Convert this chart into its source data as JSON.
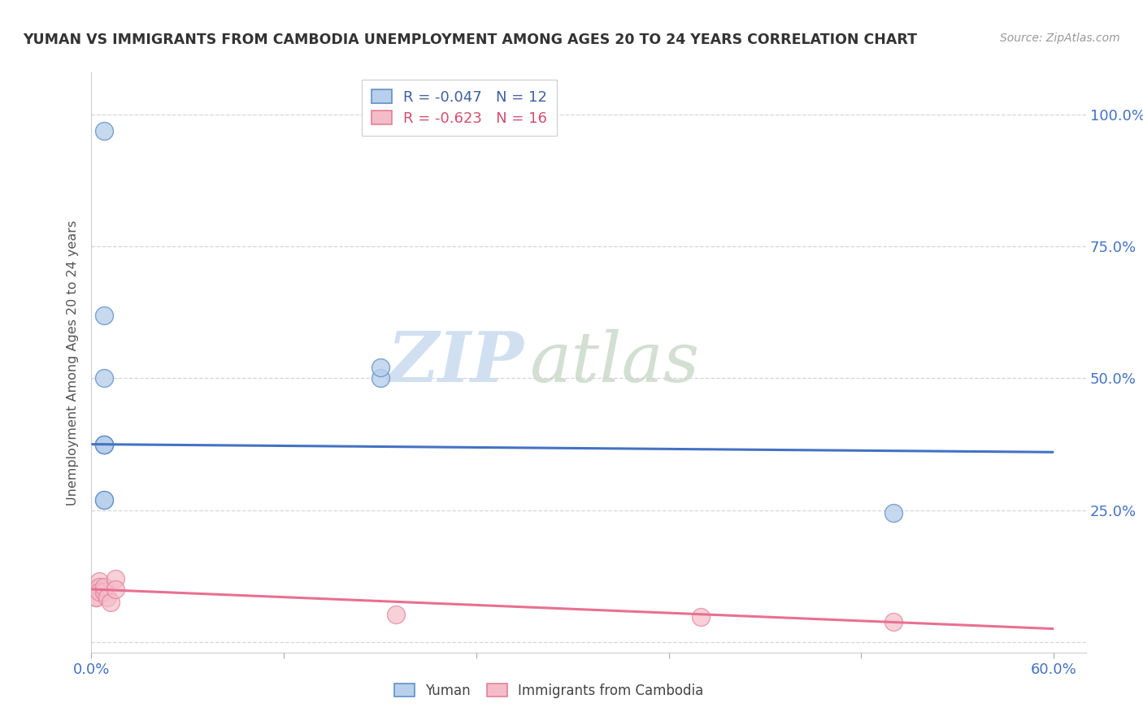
{
  "title": "YUMAN VS IMMIGRANTS FROM CAMBODIA UNEMPLOYMENT AMONG AGES 20 TO 24 YEARS CORRELATION CHART",
  "source": "Source: ZipAtlas.com",
  "ylabel": "Unemployment Among Ages 20 to 24 years",
  "xlim": [
    0.0,
    0.62
  ],
  "ylim": [
    -0.02,
    1.08
  ],
  "xticks": [
    0.0,
    0.12,
    0.24,
    0.36,
    0.48,
    0.6
  ],
  "xtick_labels": [
    "0.0%",
    "",
    "",
    "",
    "",
    "60.0%"
  ],
  "yticks_right": [
    0.0,
    0.25,
    0.5,
    0.75,
    1.0
  ],
  "ytick_labels_right": [
    "",
    "25.0%",
    "50.0%",
    "75.0%",
    "100.0%"
  ],
  "blue_face": "#b8d0ec",
  "blue_edge": "#6090c8",
  "pink_face": "#f5bcc8",
  "pink_edge": "#e08098",
  "blue_line": "#4472c4",
  "pink_line": "#e87090",
  "yuman_x": [
    0.008,
    0.008,
    0.008,
    0.008,
    0.008,
    0.008,
    0.18,
    0.18,
    0.5,
    0.008,
    0.008,
    0.008
  ],
  "yuman_y": [
    0.97,
    0.62,
    0.5,
    0.375,
    0.375,
    0.375,
    0.5,
    0.52,
    0.245,
    0.375,
    0.27,
    0.27
  ],
  "cambodia_x": [
    0.003,
    0.003,
    0.003,
    0.003,
    0.005,
    0.005,
    0.005,
    0.008,
    0.008,
    0.01,
    0.012,
    0.015,
    0.015,
    0.19,
    0.38,
    0.5
  ],
  "cambodia_y": [
    0.1,
    0.1,
    0.085,
    0.085,
    0.115,
    0.105,
    0.095,
    0.095,
    0.105,
    0.085,
    0.075,
    0.12,
    0.1,
    0.052,
    0.048,
    0.038
  ],
  "blue_trend_x": [
    0.0,
    0.6
  ],
  "blue_trend_y": [
    0.375,
    0.36
  ],
  "pink_trend_x": [
    0.0,
    0.6
  ],
  "pink_trend_y": [
    0.1,
    0.025
  ],
  "blue_R": "-0.047",
  "blue_N": "12",
  "pink_R": "-0.623",
  "pink_N": "16",
  "legend_yuman": "Yuman",
  "legend_cambodia": "Immigrants from Cambodia",
  "grid_color": "#cccccc",
  "bg_color": "#ffffff",
  "title_color": "#333333",
  "source_color": "#999999",
  "tick_color": "#4472c4",
  "ylabel_color": "#555555"
}
